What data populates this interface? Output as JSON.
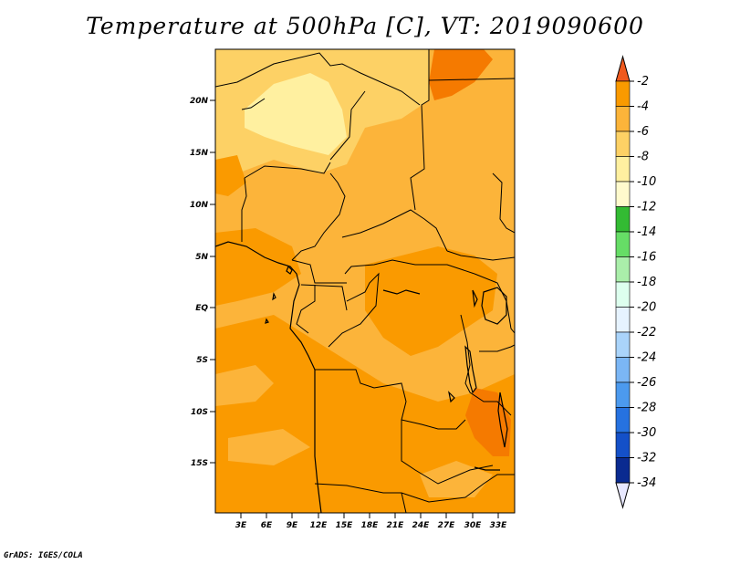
{
  "title": "Temperature at 500hPa [C], VT: 2019090600",
  "footer": "GrADS: IGES/COLA",
  "lat_labels": [
    "20N",
    "15N",
    "10N",
    "5N",
    "EQ",
    "5S",
    "10S",
    "15S"
  ],
  "lon_labels": [
    "3E",
    "6E",
    "9E",
    "12E",
    "15E",
    "18E",
    "21E",
    "24E",
    "27E",
    "30E",
    "33E"
  ],
  "colorbar": {
    "labels": [
      "-2",
      "-4",
      "-6",
      "-8",
      "-10",
      "-12",
      "-14",
      "-16",
      "-18",
      "-20",
      "-22",
      "-24",
      "-26",
      "-28",
      "-30",
      "-32",
      "-34"
    ],
    "colors": {
      "top": "#f05a1e",
      "bottom": "#e8e8ff",
      "bins": [
        "#f57a00",
        "#fa9a00",
        "#fcb43a",
        "#fdd165",
        "#fff0a0",
        "#fffacd",
        "#33bb33",
        "#66dd66",
        "#aaeeaa",
        "#ddffee",
        "#e6f3ff",
        "#aad4fa",
        "#7bb6f5",
        "#4c9aee",
        "#2672e0",
        "#1450c8",
        "#0a2a90",
        "#050565"
      ]
    }
  },
  "colors": {
    "background_field": "#fcb43a",
    "cooler_patch": "#fdd165",
    "coolest_patch": "#fff0a0",
    "warm_patch": "#fa9a00",
    "hot_patch": "#f57a00"
  }
}
